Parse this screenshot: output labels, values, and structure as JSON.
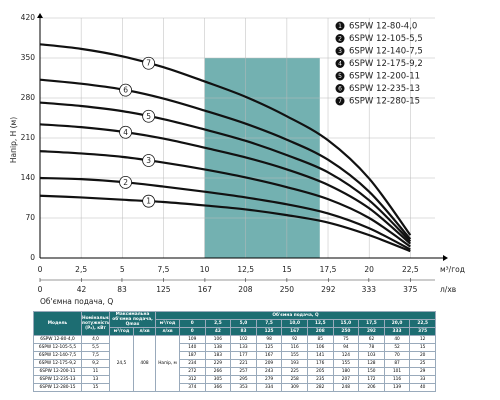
{
  "chart_data": {
    "type": "line",
    "ylabel": "Напір, Н (м)",
    "xlabel": "Об'ємна подача, Q",
    "xunit": "м³/год",
    "x2unit": "л/хв",
    "x": [
      0,
      2.5,
      5,
      7.5,
      10,
      12.5,
      15,
      17.5,
      20,
      22.5
    ],
    "xlim": [
      0,
      24
    ],
    "xticks": [
      0,
      {
        "value": 2.5,
        "label": "2,5"
      },
      5,
      {
        "value": 7.5,
        "label": "7,5"
      },
      10,
      {
        "value": 12.5,
        "label": "12,5"
      },
      15,
      {
        "value": 17.5,
        "label": "17,5"
      },
      20,
      {
        "value": 22.5,
        "label": "22,5"
      }
    ],
    "x2lim": [
      0,
      400
    ],
    "x2ticks": [
      0,
      42,
      83,
      125,
      167,
      208,
      250,
      292,
      333,
      375
    ],
    "ylim": [
      0,
      420
    ],
    "yticks": [
      0,
      70,
      140,
      210,
      280,
      350,
      420
    ],
    "grid": true,
    "highlight_range": [
      10,
      17
    ],
    "highlight_color": "#5aa3a3",
    "series": [
      {
        "name": "6SPW 12-80-4,0",
        "marker": "1",
        "color": "#111111",
        "values": [
          109,
          106,
          102,
          98,
          92,
          85,
          75,
          62,
          40,
          12
        ]
      },
      {
        "name": "6SPW 12-105-5,5",
        "marker": "2",
        "color": "#111111",
        "values": [
          140,
          138,
          133,
          125,
          116,
          106,
          94,
          78,
          52,
          15
        ]
      },
      {
        "name": "6SPW 12-140-7,5",
        "marker": "3",
        "color": "#111111",
        "values": [
          187,
          183,
          177,
          167,
          155,
          141,
          124,
          103,
          70,
          20
        ]
      },
      {
        "name": "6SPW 12-175-9,2",
        "marker": "4",
        "color": "#111111",
        "values": [
          234,
          229,
          221,
          209,
          193,
          176,
          155,
          128,
          87,
          25
        ]
      },
      {
        "name": "6SPW 12-200-11",
        "marker": "5",
        "color": "#111111",
        "values": [
          272,
          266,
          257,
          243,
          225,
          205,
          180,
          150,
          101,
          29
        ]
      },
      {
        "name": "6SPW 12-235-13",
        "marker": "6",
        "color": "#111111",
        "values": [
          312,
          305,
          295,
          279,
          258,
          235,
          207,
          172,
          116,
          33
        ]
      },
      {
        "name": "6SPW 12-280-15",
        "marker": "7",
        "color": "#111111",
        "values": [
          374,
          366,
          353,
          334,
          309,
          282,
          248,
          206,
          139,
          40
        ]
      }
    ]
  },
  "table": {
    "model": "Модель",
    "power": "Номінальна потужність (P₂), кВт",
    "qmax": "Максимальна об'ємна подача, Qmax",
    "qmax_units": [
      "м³/год",
      "л/хв"
    ],
    "flow": "Об'ємна подача, Q",
    "units": [
      "м³/год",
      "л/хв"
    ],
    "q_m3h": [
      "0",
      "2,5",
      "5,0",
      "7,5",
      "10,0",
      "12,5",
      "15,0",
      "17,5",
      "20,0",
      "22,5"
    ],
    "q_lmin": [
      0,
      42,
      83,
      125,
      167,
      208,
      250,
      292,
      333,
      375
    ],
    "powers": [
      "4,0",
      "5,5",
      "7,5",
      "9,2",
      "11",
      "13",
      "15"
    ],
    "qmax_values": [
      "24,5",
      408
    ],
    "head": "Напір, м"
  }
}
